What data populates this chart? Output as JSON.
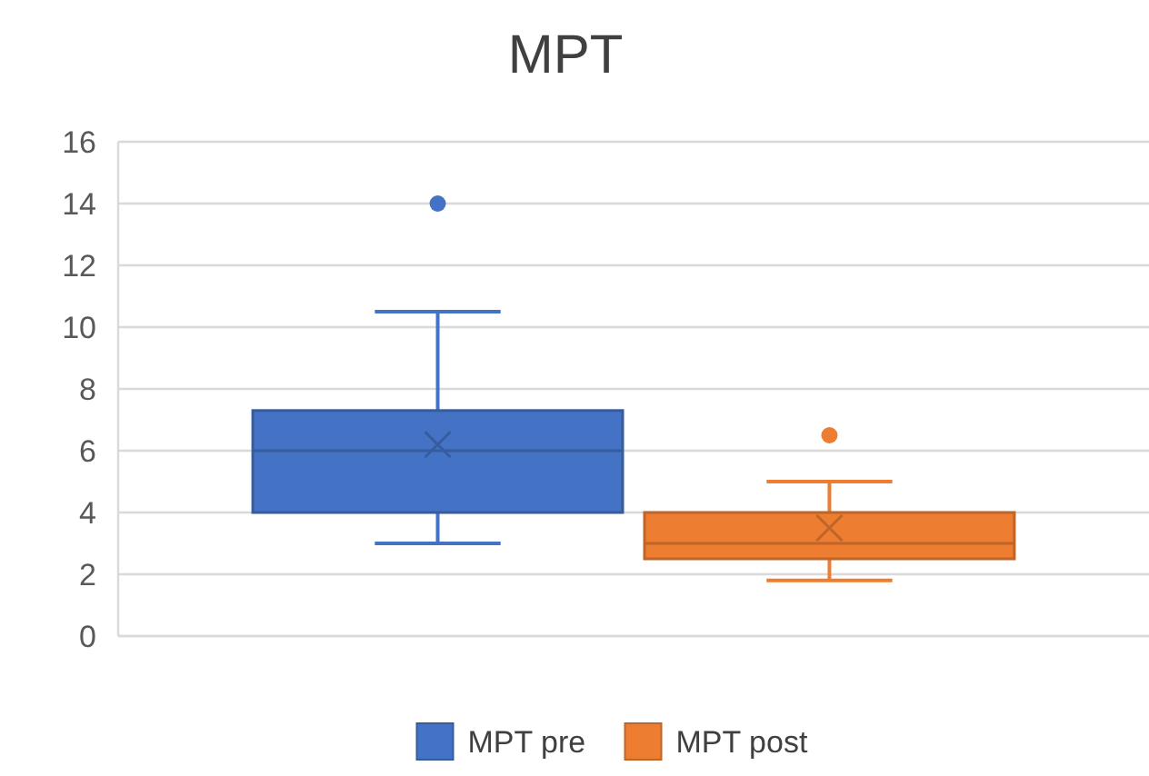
{
  "chart_data": {
    "type": "box",
    "title": "MPT",
    "categories": [
      null
    ],
    "ylim": [
      0,
      16
    ],
    "yticks": [
      0,
      2,
      4,
      6,
      8,
      10,
      12,
      14,
      16
    ],
    "grid": "y",
    "legend": "bottom",
    "series": [
      {
        "name": "MPT pre",
        "color": "#4472c4",
        "boxes": [
          {
            "low": 3,
            "q1": 4,
            "median": 6,
            "q3": 7.3,
            "high": 10.5,
            "mean": 6.2,
            "outliers": [
              14
            ]
          }
        ]
      },
      {
        "name": "MPT post",
        "color": "#ed7d31",
        "boxes": [
          {
            "low": 1.8,
            "q1": 2.5,
            "median": 3,
            "q3": 4,
            "high": 5,
            "mean": 3.5,
            "outliers": [
              6.5
            ]
          }
        ]
      }
    ]
  }
}
